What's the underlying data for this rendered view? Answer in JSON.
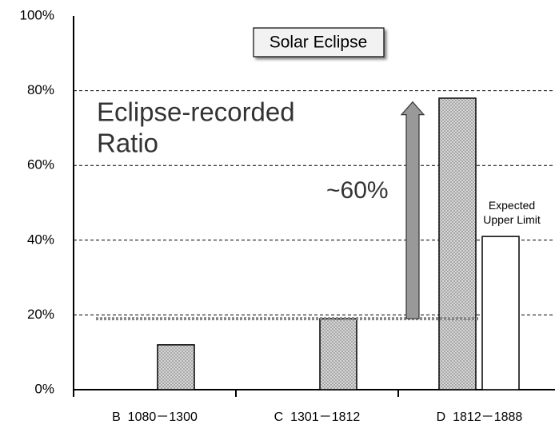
{
  "chart_data": {
    "type": "bar",
    "title": "Solar Eclipse",
    "annotation": [
      "Eclipse-recorded",
      "Ratio"
    ],
    "categories": [
      "B  1080－1300",
      "C  1301－1812",
      "D  1812－1888"
    ],
    "values": [
      12,
      19,
      78
    ],
    "expected_upper_limit": {
      "label": [
        "Expected",
        "Upper Limit"
      ],
      "value": 41
    },
    "reference_line": 19,
    "arrow": {
      "from": 19,
      "to": 77,
      "label": "~60%"
    },
    "ylim": [
      0,
      100
    ],
    "yticks": [
      {
        "value": 0,
        "label": "0%"
      },
      {
        "value": 20,
        "label": "20%"
      },
      {
        "value": 40,
        "label": "40%"
      },
      {
        "value": 60,
        "label": "60%"
      },
      {
        "value": 80,
        "label": "80%"
      },
      {
        "value": 100,
        "label": "100%"
      }
    ],
    "grid": true
  }
}
